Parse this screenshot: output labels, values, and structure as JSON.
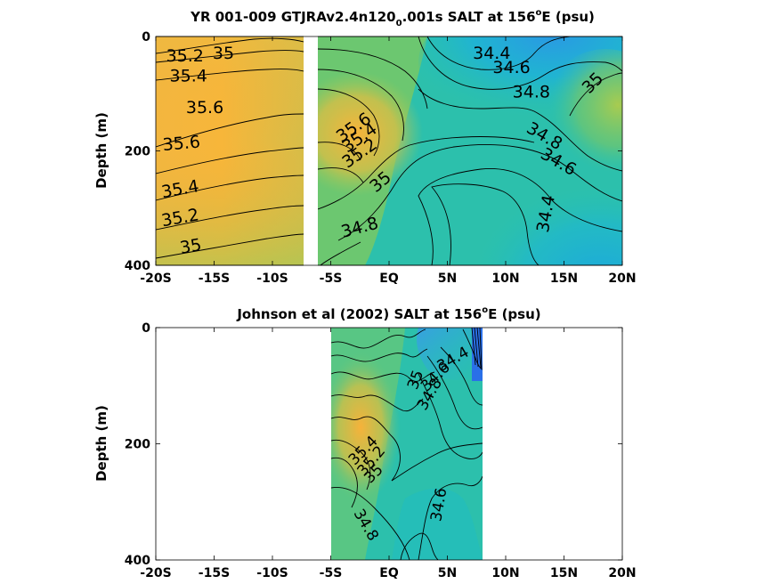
{
  "chart_data": [
    {
      "type": "heatmap",
      "title_parts": [
        "YR 001-009 GTJRAv2.4n120",
        "0",
        ".001s SALT at 156",
        "o",
        "E (psu)"
      ],
      "ylabel": "Depth (m)",
      "xlim": [
        -20,
        20
      ],
      "ylim": [
        0,
        400
      ],
      "x_ticks": [
        -20,
        -15,
        -10,
        -5,
        0,
        5,
        10,
        15,
        20
      ],
      "x_tick_labels": [
        "-20S",
        "-15S",
        "-10S",
        "-5S",
        "EQ",
        "5N",
        "10N",
        "15N",
        "20N"
      ],
      "y_ticks": [
        0,
        200,
        400
      ],
      "y_tick_labels": [
        "0",
        "200",
        "400"
      ],
      "data_gap_x": [
        -7.5,
        -6.5
      ],
      "colormap": [
        "#3a8ee6",
        "#1fb4d6",
        "#2cc3a5",
        "#9ccb5a",
        "#e5bb3e",
        "#f9b03a"
      ],
      "contour_levels": [
        34.4,
        34.6,
        34.8,
        35,
        35.2,
        35.4,
        35.6
      ],
      "contour_labels": [
        {
          "text": "35.2",
          "x": -17.5,
          "y": 35
        },
        {
          "text": "35",
          "x": -14.2,
          "y": 30
        },
        {
          "text": "35.4",
          "x": -17.2,
          "y": 70
        },
        {
          "text": "35.6",
          "x": -15.8,
          "y": 125
        },
        {
          "text": "35.6",
          "x": -17.8,
          "y": 188
        },
        {
          "text": "35.4",
          "x": -17.9,
          "y": 268
        },
        {
          "text": "35.2",
          "x": -17.9,
          "y": 318
        },
        {
          "text": "35",
          "x": -17.0,
          "y": 368
        },
        {
          "text": "34.4",
          "x": 8.8,
          "y": 30
        },
        {
          "text": "34.6",
          "x": 10.5,
          "y": 55
        },
        {
          "text": "34.8",
          "x": 12.2,
          "y": 98
        },
        {
          "text": "35",
          "x": 17.5,
          "y": 82
        },
        {
          "text": "35.6",
          "x": -3.0,
          "y": 160
        },
        {
          "text": "35.4",
          "x": -2.5,
          "y": 178
        },
        {
          "text": "35.2",
          "x": -2.5,
          "y": 205
        },
        {
          "text": "35",
          "x": -0.7,
          "y": 255
        },
        {
          "text": "34.8",
          "x": 13.3,
          "y": 175
        },
        {
          "text": "34.6",
          "x": 14.5,
          "y": 220
        },
        {
          "text": "34.4",
          "x": 13.5,
          "y": 310
        },
        {
          "text": "34.8",
          "x": -2.5,
          "y": 335
        }
      ]
    },
    {
      "type": "heatmap",
      "title_parts": [
        "Johnson et al (2002) SALT at 156",
        "o",
        "E (psu)"
      ],
      "ylabel": "Depth (m)",
      "xlim": [
        -20,
        20
      ],
      "ylim": [
        0,
        400
      ],
      "x_ticks": [
        -20,
        -15,
        -10,
        -5,
        0,
        5,
        10,
        15,
        20
      ],
      "x_tick_labels": [
        "-20S",
        "-15S",
        "-10S",
        "-5S",
        "EQ",
        "5N",
        "10N",
        "15N",
        "20N"
      ],
      "y_ticks": [
        0,
        200,
        400
      ],
      "y_tick_labels": [
        "0",
        "200",
        "400"
      ],
      "data_extent_x": [
        -5,
        8
      ],
      "colormap": [
        "#3a8ee6",
        "#1fb4d6",
        "#2cc3a5",
        "#9ccb5a",
        "#e5bb3e",
        "#f9b03a"
      ],
      "contour_levels": [
        34.4,
        34.6,
        34.8,
        35,
        35.2,
        35.4
      ],
      "contour_labels": [
        {
          "text": "34.4",
          "x": 5.5,
          "y": 55
        },
        {
          "text": "34.6",
          "x": 4.0,
          "y": 85
        },
        {
          "text": "34.8",
          "x": 3.5,
          "y": 115
        },
        {
          "text": "35",
          "x": 2.3,
          "y": 90
        },
        {
          "text": "35.4",
          "x": -2.2,
          "y": 212
        },
        {
          "text": "35.2",
          "x": -1.5,
          "y": 230
        },
        {
          "text": "35",
          "x": -1.3,
          "y": 252
        },
        {
          "text": "34.6",
          "x": 4.3,
          "y": 305
        },
        {
          "text": "34.8",
          "x": -2.0,
          "y": 340
        }
      ]
    }
  ]
}
